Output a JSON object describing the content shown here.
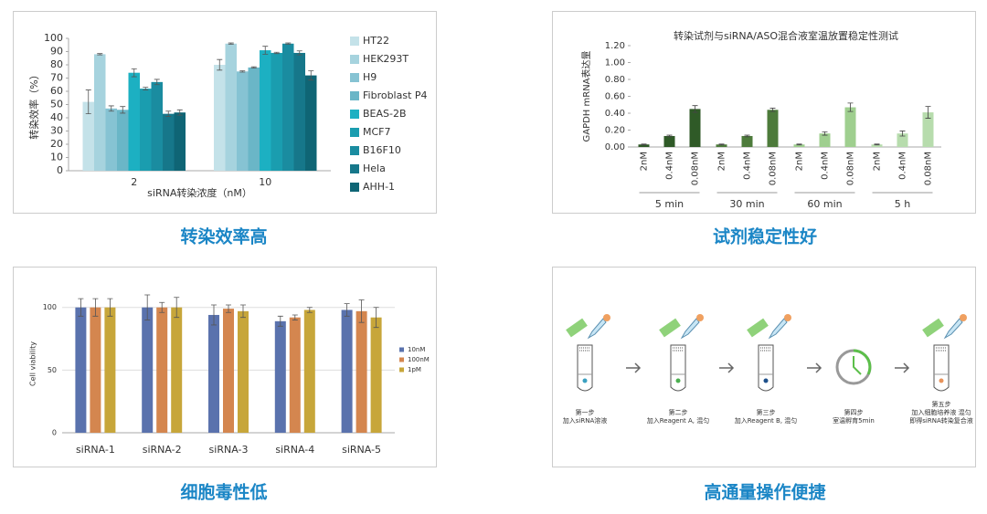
{
  "chart_data": [
    {
      "type": "grouped_bar",
      "y_label": "转染效率（%）",
      "x_label": "siRNA转染浓度（nM）",
      "categories": [
        "2",
        "10"
      ],
      "ylim": [
        0,
        100
      ],
      "yticks": [
        0,
        10,
        20,
        30,
        40,
        50,
        60,
        70,
        80,
        90,
        100
      ],
      "legend": "right",
      "series": [
        {
          "name": "HT22",
          "color": "#c4e2e9",
          "values": [
            52,
            80
          ],
          "errors": [
            9,
            4
          ]
        },
        {
          "name": "HEK293T",
          "color": "#a6d3de",
          "values": [
            88,
            96
          ],
          "errors": [
            0.5,
            0.5
          ]
        },
        {
          "name": "H9",
          "color": "#86c3d3",
          "values": [
            47,
            75
          ],
          "errors": [
            2,
            0.5
          ]
        },
        {
          "name": "Fibroblast P4",
          "color": "#6ab6c7",
          "values": [
            46,
            78
          ],
          "errors": [
            2.5,
            0.5
          ]
        },
        {
          "name": "BEAS-2B",
          "color": "#1cb0c2",
          "values": [
            74,
            91
          ],
          "errors": [
            3,
            3
          ]
        },
        {
          "name": "MCF7",
          "color": "#1a9daf",
          "values": [
            62,
            89
          ],
          "errors": [
            1,
            0.5
          ]
        },
        {
          "name": "B16F10",
          "color": "#1a8ca0",
          "values": [
            67,
            96
          ],
          "errors": [
            2,
            0.5
          ]
        },
        {
          "name": "Hela",
          "color": "#16778a",
          "values": [
            43,
            89
          ],
          "errors": [
            2,
            1.5
          ]
        },
        {
          "name": "AHH-1",
          "color": "#0f6575",
          "values": [
            44,
            72
          ],
          "errors": [
            2,
            3.5
          ]
        }
      ]
    },
    {
      "type": "bar",
      "title": "转染试剂与siRNA/ASO混合液室温放置稳定性测试",
      "y_label": "GAPDH mRNA表达量",
      "categories": [
        "2nM",
        "0.4nM",
        "0.08nM"
      ],
      "ylim": [
        0,
        1.2
      ],
      "yticks": [
        {
          "value": 0,
          "label": "0.00"
        },
        {
          "value": 0.2,
          "label": "0.20"
        },
        {
          "value": 0.4,
          "label": "0.40"
        },
        {
          "value": 0.6,
          "label": "0.60"
        },
        {
          "value": 0.8,
          "label": "0.80"
        },
        {
          "value": 1.0,
          "label": "1.00"
        },
        {
          "value": 1.2,
          "label": "1.20"
        }
      ],
      "series": [
        {
          "name": "5 min",
          "color": "#2f5a27",
          "values": [
            0.03,
            0.13,
            0.45
          ],
          "errors": [
            0.005,
            0.01,
            0.04
          ]
        },
        {
          "name": "30 min",
          "color": "#4d7b3b",
          "values": [
            0.03,
            0.13,
            0.44
          ],
          "errors": [
            0.005,
            0.01,
            0.02
          ]
        },
        {
          "name": "60 min",
          "color": "#9fcf8f",
          "values": [
            0.03,
            0.16,
            0.47
          ],
          "errors": [
            0.005,
            0.02,
            0.05
          ]
        },
        {
          "name": "5 h",
          "color": "#b7dcad",
          "values": [
            0.03,
            0.16,
            0.41
          ],
          "errors": [
            0.005,
            0.03,
            0.07
          ]
        }
      ]
    },
    {
      "type": "grouped_bar",
      "y_label": "Cell viability",
      "grid": true,
      "categories": [
        "siRNA-1",
        "siRNA-2",
        "siRNA-3",
        "siRNA-4",
        "siRNA-5"
      ],
      "ylim": [
        0,
        110
      ],
      "yticks": [
        0,
        50,
        100
      ],
      "legend": "right",
      "series": [
        {
          "name": "10nM",
          "color": "#5a72ad",
          "values": [
            100,
            100,
            94,
            89,
            98
          ],
          "errors": [
            7,
            10,
            8,
            4,
            5
          ]
        },
        {
          "name": "100nM",
          "color": "#d4864f",
          "values": [
            100,
            100,
            99,
            92,
            97
          ],
          "errors": [
            7,
            4,
            3,
            2,
            9
          ]
        },
        {
          "name": "1pM",
          "color": "#c7a63a",
          "values": [
            100,
            100,
            97,
            98,
            92
          ],
          "errors": [
            7,
            8,
            5,
            2,
            8
          ]
        }
      ]
    }
  ],
  "captions": [
    "转染效率高",
    "试剂稳定性好",
    "细胞毒性低",
    "高通量操作便捷"
  ],
  "workflow": {
    "steps": [
      {
        "lines": [
          "第一步",
          "加入siRNA溶液"
        ]
      },
      {
        "lines": [
          "第二步",
          "加入Reagent A, 混匀"
        ]
      },
      {
        "lines": [
          "第三步",
          "加入Reagent B, 混匀"
        ]
      },
      {
        "lines": [
          "第四步",
          "室温孵育5min"
        ]
      },
      {
        "lines": [
          "第五步",
          "加入细胞培养液 混匀",
          "即得siRNA转染复合液"
        ]
      }
    ]
  }
}
